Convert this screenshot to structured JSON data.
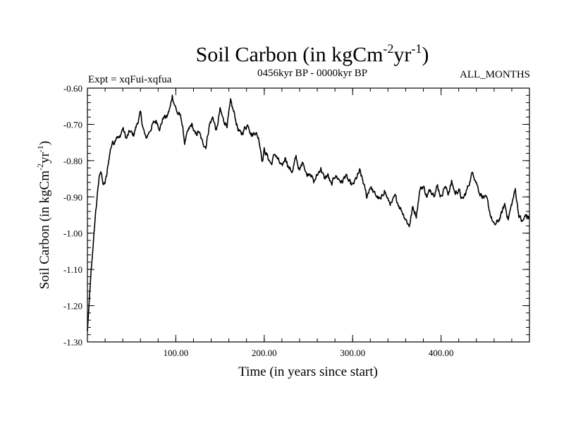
{
  "chart_data": {
    "type": "line",
    "title_main": "Soil Carbon (in kgCm",
    "title_sup1": "-2",
    "title_mid": "yr",
    "title_sup2": "-1",
    "title_end": ")",
    "subtitle_left": "Expt = xqFui-xqfua",
    "subtitle_center": "0456kyr BP - 0000kyr BP",
    "subtitle_right": "ALL_MONTHS",
    "xlabel": "Time (in years since start)",
    "ylabel_main": "Soil Carbon (in kgCm",
    "ylabel_sup1": "-2",
    "ylabel_mid": "yr",
    "ylabel_sup2": "-1",
    "ylabel_end": ")",
    "xlim": [
      0,
      500
    ],
    "ylim": [
      -1.3,
      -0.6
    ],
    "x_ticks": [
      {
        "value": 100,
        "label": "100.00"
      },
      {
        "value": 200,
        "label": "200.00"
      },
      {
        "value": 300,
        "label": "300.00"
      },
      {
        "value": 400,
        "label": "400.00"
      }
    ],
    "y_ticks": [
      {
        "value": -0.6,
        "label": "-0.60"
      },
      {
        "value": -0.7,
        "label": "-0.70"
      },
      {
        "value": -0.8,
        "label": "-0.80"
      },
      {
        "value": -0.9,
        "label": "-0.90"
      },
      {
        "value": -1.0,
        "label": "-1.00"
      },
      {
        "value": -1.1,
        "label": "-1.10"
      },
      {
        "value": -1.2,
        "label": "-1.20"
      },
      {
        "value": -1.3,
        "label": "-1.30"
      }
    ],
    "x_minor_step": 20,
    "y_minor_step": 0.02,
    "series": [
      {
        "name": "soil carbon",
        "color": "#000000",
        "x": [
          0,
          2,
          4,
          6,
          8,
          10,
          12,
          14,
          16,
          18,
          20,
          22,
          24,
          26,
          28,
          30,
          33,
          36,
          40,
          44,
          48,
          52,
          56,
          60,
          63,
          66,
          70,
          74,
          78,
          82,
          86,
          90,
          94,
          96,
          98,
          102,
          106,
          110,
          114,
          118,
          122,
          126,
          130,
          134,
          138,
          142,
          146,
          150,
          154,
          158,
          162,
          166,
          170,
          174,
          178,
          182,
          186,
          190,
          194,
          198,
          200,
          204,
          208,
          212,
          216,
          220,
          224,
          228,
          232,
          236,
          240,
          244,
          248,
          252,
          256,
          260,
          264,
          268,
          272,
          276,
          280,
          284,
          288,
          292,
          296,
          300,
          304,
          308,
          312,
          316,
          320,
          324,
          328,
          332,
          336,
          340,
          344,
          348,
          352,
          356,
          360,
          364,
          368,
          372,
          376,
          380,
          384,
          388,
          392,
          396,
          400,
          404,
          408,
          412,
          416,
          420,
          424,
          428,
          432,
          436,
          440,
          444,
          448,
          452,
          456,
          460,
          464,
          468,
          472,
          476,
          480,
          484,
          488,
          492,
          496,
          500
        ],
        "y": [
          -1.27,
          -1.19,
          -1.11,
          -1.05,
          -0.98,
          -0.93,
          -0.87,
          -0.84,
          -0.83,
          -0.87,
          -0.86,
          -0.84,
          -0.8,
          -0.77,
          -0.75,
          -0.75,
          -0.73,
          -0.74,
          -0.71,
          -0.74,
          -0.72,
          -0.73,
          -0.7,
          -0.67,
          -0.71,
          -0.74,
          -0.72,
          -0.7,
          -0.69,
          -0.71,
          -0.68,
          -0.68,
          -0.65,
          -0.62,
          -0.64,
          -0.67,
          -0.68,
          -0.75,
          -0.72,
          -0.7,
          -0.73,
          -0.72,
          -0.75,
          -0.76,
          -0.7,
          -0.68,
          -0.72,
          -0.66,
          -0.69,
          -0.7,
          -0.64,
          -0.67,
          -0.71,
          -0.73,
          -0.71,
          -0.7,
          -0.73,
          -0.72,
          -0.74,
          -0.8,
          -0.77,
          -0.79,
          -0.81,
          -0.78,
          -0.8,
          -0.82,
          -0.79,
          -0.82,
          -0.83,
          -0.79,
          -0.83,
          -0.8,
          -0.84,
          -0.83,
          -0.86,
          -0.84,
          -0.82,
          -0.85,
          -0.84,
          -0.87,
          -0.84,
          -0.85,
          -0.86,
          -0.84,
          -0.86,
          -0.87,
          -0.85,
          -0.83,
          -0.86,
          -0.9,
          -0.87,
          -0.89,
          -0.9,
          -0.91,
          -0.88,
          -0.91,
          -0.92,
          -0.9,
          -0.92,
          -0.94,
          -0.96,
          -0.98,
          -0.93,
          -0.95,
          -0.88,
          -0.87,
          -0.9,
          -0.88,
          -0.89,
          -0.87,
          -0.9,
          -0.87,
          -0.89,
          -0.86,
          -0.89,
          -0.88,
          -0.91,
          -0.89,
          -0.86,
          -0.83,
          -0.86,
          -0.89,
          -0.9,
          -0.91,
          -0.95,
          -0.98,
          -0.97,
          -0.95,
          -0.92,
          -0.96,
          -0.92,
          -0.88,
          -0.95,
          -0.97,
          -0.95,
          -0.96
        ]
      }
    ]
  }
}
